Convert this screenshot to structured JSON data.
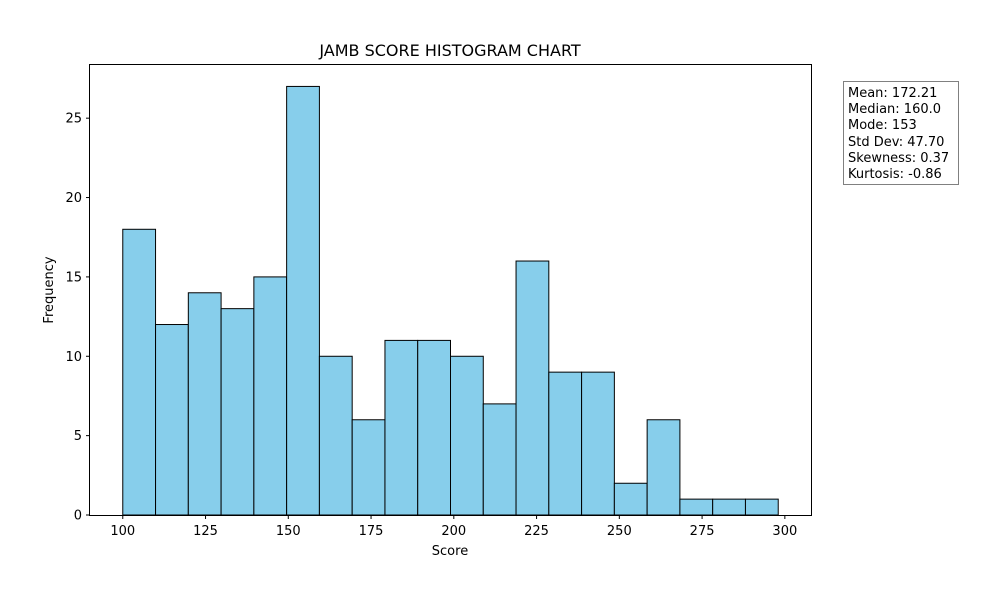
{
  "chart_data": {
    "type": "bar",
    "title": "JAMB SCORE HISTOGRAM CHART",
    "xlabel": "Score",
    "ylabel": "Frequency",
    "bin_start": 100,
    "bin_width": 9.9,
    "counts": [
      18,
      12,
      14,
      13,
      15,
      27,
      10,
      6,
      11,
      11,
      10,
      7,
      16,
      9,
      9,
      2,
      6,
      1,
      1,
      1
    ],
    "xlim": [
      90.1,
      307.9
    ],
    "ylim": [
      0,
      28.35
    ],
    "xticks": [
      100,
      125,
      150,
      175,
      200,
      225,
      250,
      275,
      300
    ],
    "yticks": [
      0,
      5,
      10,
      15,
      20,
      25
    ],
    "bar_color": "#87CEEB",
    "edge_color": "#000000",
    "grid": false
  },
  "stats": {
    "mean": "Mean: 172.21",
    "median": "Median: 160.0",
    "mode": "Mode: 153",
    "std_dev": "Std Dev: 47.70",
    "skewness": "Skewness: 0.37",
    "kurtosis": "Kurtosis: -0.86"
  }
}
